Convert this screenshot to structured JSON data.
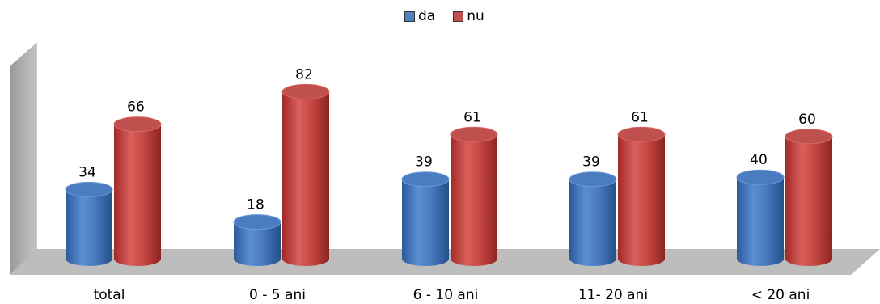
{
  "chart_data": {
    "type": "bar",
    "categories": [
      "total",
      "0 - 5 ani",
      "6 - 10 ani",
      "11- 20 ani",
      "< 20 ani"
    ],
    "series": [
      {
        "name": "da",
        "values": [
          34,
          18,
          39,
          39,
          40
        ],
        "color": "#4f81bd"
      },
      {
        "name": "nu",
        "values": [
          66,
          82,
          61,
          61,
          60
        ],
        "color": "#c0504d"
      }
    ],
    "ylim": [
      0,
      100
    ],
    "legend_position": "top-center",
    "grid": false,
    "style": "3d-cylinder"
  }
}
